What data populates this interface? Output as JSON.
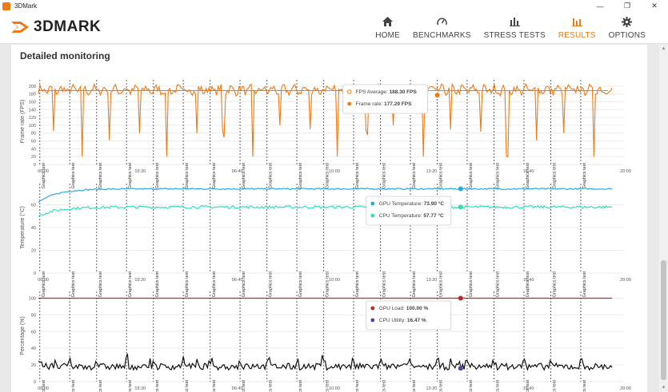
{
  "window": {
    "title": "3DMark",
    "minimize": "—",
    "restore": "❐",
    "close": "✕"
  },
  "brand": {
    "name": "3DMARK"
  },
  "nav": [
    {
      "label": "HOME",
      "icon": "home-icon",
      "active": false
    },
    {
      "label": "BENCHMARKS",
      "icon": "gauge-icon",
      "active": false
    },
    {
      "label": "STRESS TESTS",
      "icon": "bars-icon",
      "active": false
    },
    {
      "label": "RESULTS",
      "icon": "results-icon",
      "active": true
    },
    {
      "label": "OPTIONS",
      "icon": "gear-icon",
      "active": false
    }
  ],
  "section": {
    "title": "Detailed monitoring"
  },
  "colors": {
    "accent": "#f07a14",
    "gpu_temp": "#29a8e0",
    "cpu_temp": "#2ee0b8",
    "gpu_load": "#cc2222",
    "cpu_util": "#111111"
  },
  "chart_data": [
    {
      "type": "line",
      "ylabel": "Frame rate (FPS)",
      "ylim": [
        0,
        220
      ],
      "yticks": [
        0,
        20,
        40,
        60,
        80,
        100,
        120,
        140,
        160,
        180,
        200
      ],
      "xticks": [
        "00:00",
        "03:20",
        "06:40",
        "10:00",
        "13:20",
        "16:40",
        "20:00"
      ],
      "markers": [
        "Graphics test",
        "Graphics test",
        "Graphics test",
        "Graphics test",
        "Graphics test",
        "Graphics test",
        "Graphics test",
        "Graphics test",
        "Graphics test",
        "Graphics test",
        "Graphics test",
        "Graphics test",
        "Graphics test",
        "Graphics test",
        "Graphics test",
        "Graphics test",
        "Graphics test",
        "Graphics test",
        "Graphics test",
        "Graphics test"
      ],
      "series": [
        {
          "name": "FPS Average",
          "value": "188.30 FPS",
          "level": 188.3,
          "color": "#f07a14",
          "style": "average"
        },
        {
          "name": "Frame rate",
          "value": "177.29 FPS",
          "level": 190,
          "noise": 10,
          "dip": 60,
          "color": "#f07a14",
          "style": "fps"
        }
      ],
      "hover_x_min": 13.7
    },
    {
      "type": "line",
      "ylabel": "Temperature (°C)",
      "ylim": [
        0,
        80
      ],
      "yticks": [
        0,
        20,
        40,
        60
      ],
      "xticks": [
        "00:00",
        "03:20",
        "06:40",
        "10:00",
        "13:20",
        "16:40",
        "20:00"
      ],
      "markers": [
        "Graphics test",
        "Graphics test",
        "Graphics test",
        "Graphics test",
        "Graphics test",
        "Graphics test",
        "Graphics test",
        "Graphics test",
        "Graphics test",
        "Graphics test",
        "Graphics test",
        "Graphics test",
        "Graphics test",
        "Graphics test",
        "Graphics test",
        "Graphics test",
        "Graphics test",
        "Graphics test",
        "Graphics test",
        "Graphics test"
      ],
      "series": [
        {
          "name": "GPU Temperature",
          "value": "73.90 °C",
          "start": 62,
          "level": 74,
          "noise": 0.6,
          "color": "#29a8e0",
          "style": "temp"
        },
        {
          "name": "CPU Temperature",
          "value": "57.77 °C",
          "start": 50,
          "level": 58,
          "noise": 1.2,
          "color": "#2ee0b8",
          "style": "temp"
        }
      ],
      "hover_x_min": 14.5
    },
    {
      "type": "line",
      "ylabel": "Percentage (%)",
      "ylim": [
        0,
        110
      ],
      "yticks": [
        0,
        20,
        40,
        60,
        80,
        100
      ],
      "xticks": [
        "00:00",
        "03:20",
        "06:40",
        "10:00",
        "13:20",
        "16:40",
        "20:00"
      ],
      "markers": [
        "Graphics test",
        "Graphics test",
        "Graphics test",
        "Graphics test",
        "Graphics test",
        "Graphics test",
        "Graphics test",
        "Graphics test",
        "Graphics test",
        "Graphics test",
        "Graphics test",
        "Graphics test",
        "Graphics test",
        "Graphics test",
        "Graphics test",
        "Graphics test",
        "Graphics test",
        "Graphics test",
        "Graphics test",
        "Graphics test"
      ],
      "series": [
        {
          "name": "GPU Load",
          "value": "100.00 %",
          "level": 100,
          "noise": 0,
          "color": "#cc2222",
          "style": "flat"
        },
        {
          "name": "CPU Utility",
          "value": "16.47 %",
          "level": 18,
          "noise": 4,
          "color": "#111111",
          "dot": "#5a3fa0",
          "style": "noisy"
        }
      ],
      "hover_x_min": 14.5
    }
  ]
}
